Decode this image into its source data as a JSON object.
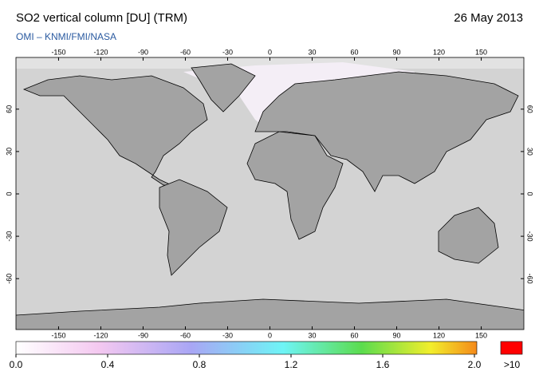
{
  "header": {
    "title": "SO2 vertical column [DU] (TRM)",
    "date": "26 May 2013",
    "subtitle": "OMI  –  KNMI/FMI/NASA"
  },
  "map": {
    "lon_ticks": [
      -150,
      -120,
      -90,
      -60,
      -30,
      0,
      30,
      60,
      90,
      120,
      150
    ],
    "lat_ticks": [
      60,
      30,
      0,
      -30,
      -60
    ]
  },
  "colorbar": {
    "ticks": [
      {
        "value": 0,
        "label": "0.0"
      },
      0.4,
      0.8,
      1.2,
      1.6,
      {
        "value": 2,
        "label": "2.0"
      }
    ],
    "range": [
      0,
      2
    ],
    "overflow_label": ">10"
  }
}
